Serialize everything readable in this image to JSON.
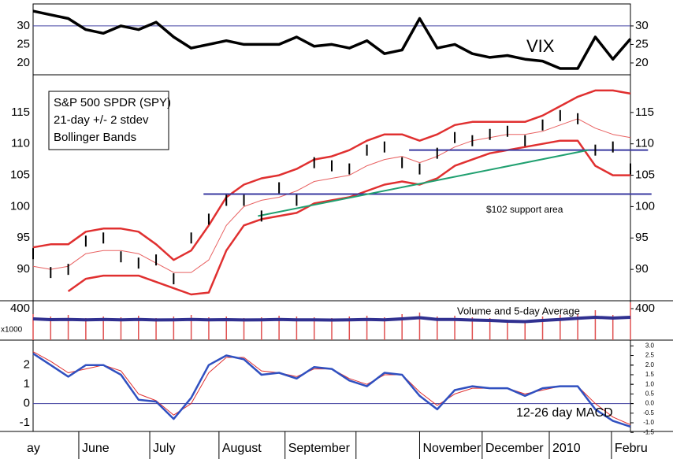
{
  "chart_data": [
    {
      "type": "line",
      "label": "VIX",
      "x": [
        0,
        5,
        10,
        15,
        20,
        25,
        30,
        35,
        40,
        45,
        50,
        55,
        60,
        65,
        70,
        75,
        80,
        85,
        90,
        95,
        100,
        105,
        110,
        115,
        120,
        125,
        130,
        135,
        140,
        145,
        150,
        155,
        160,
        165,
        170
      ],
      "xlim": [
        0,
        170
      ],
      "ylim": [
        16.8,
        35.3
      ],
      "yticks": [
        20,
        25,
        30
      ],
      "hline": 30,
      "series": [
        {
          "color": "#000000",
          "width": 3.5,
          "values": [
            34,
            33,
            32,
            29,
            28,
            30,
            29,
            31,
            27,
            24,
            25,
            26,
            25,
            25,
            25,
            27,
            24.5,
            25,
            24,
            26,
            22.5,
            23.5,
            32,
            24,
            25,
            22.5,
            21.5,
            22,
            21,
            20.5,
            18.5,
            18.5,
            27,
            21,
            26.5
          ]
        }
      ]
    },
    {
      "type": "bollinger",
      "title_lines": [
        "S&P 500 SPDR (SPY)",
        "21-day +/- 2 stdev",
        "Bollinger Bands"
      ],
      "x": [
        0,
        5,
        10,
        15,
        20,
        25,
        30,
        35,
        40,
        45,
        50,
        55,
        60,
        65,
        70,
        75,
        80,
        85,
        90,
        95,
        100,
        105,
        110,
        115,
        120,
        125,
        130,
        135,
        140,
        145,
        150,
        155,
        160,
        165,
        170
      ],
      "xlim": [
        0,
        170
      ],
      "ylim": [
        85,
        121
      ],
      "yticks": [
        90,
        95,
        100,
        105,
        110,
        115
      ],
      "price": {
        "color": "#000000",
        "values": [
          92.5,
          89.5,
          90,
          94.5,
          95,
          92,
          91,
          91.5,
          88.5,
          95,
          98,
          101,
          101,
          98.5,
          103,
          101,
          107,
          106.5,
          106,
          109,
          109.5,
          107,
          106,
          108.5,
          111,
          110.5,
          111.5,
          112,
          110.5,
          113,
          114.5,
          114,
          109,
          109.5,
          106
        ]
      },
      "series": [
        {
          "color": "#e03030",
          "width": 2.5,
          "values": [
            93.5,
            94,
            94,
            96,
            96.5,
            96.5,
            96,
            94,
            91.5,
            93,
            97,
            101.5,
            103.5,
            104.5,
            105,
            106,
            107.5,
            108,
            109,
            110.5,
            111.5,
            111.5,
            110.5,
            111.5,
            113,
            113.5,
            113.5,
            113.5,
            113.5,
            114.5,
            116,
            117.5,
            118.5,
            118.5,
            118
          ]
        },
        {
          "color": "#e86060",
          "width": 1,
          "values": [
            90.5,
            90,
            90.5,
            92.5,
            93,
            93,
            92.5,
            91,
            89.5,
            89.5,
            91.5,
            97,
            100,
            101,
            101.5,
            102.5,
            104,
            104.5,
            105,
            106.5,
            107.5,
            108,
            107,
            108,
            109.5,
            110.5,
            111,
            111.5,
            111.5,
            112,
            113,
            114,
            112.5,
            111.5,
            111
          ]
        },
        {
          "color": "#e03030",
          "width": 2.5,
          "values": [
            null,
            null,
            86.5,
            88.5,
            89,
            89,
            89,
            88,
            87,
            86,
            86.3,
            93,
            97,
            98,
            98.5,
            99,
            100.5,
            101,
            101.5,
            102.5,
            103.5,
            104,
            103.5,
            104.5,
            106.5,
            107.5,
            108.5,
            109,
            109.5,
            110,
            110.5,
            110.5,
            106.5,
            105,
            105
          ]
        }
      ],
      "lines": [
        {
          "color": "#3a3aa0",
          "x": [
            48.5,
            176
          ],
          "values": [
            102,
            102
          ]
        },
        {
          "color": "#3a3aa0",
          "x": [
            107,
            175
          ],
          "values": [
            109,
            109
          ]
        },
        {
          "color": "#20a070",
          "x": [
            64,
            158
          ],
          "values": [
            98.5,
            109
          ]
        }
      ],
      "annotation": "$102 support area"
    },
    {
      "type": "volume",
      "label": "Volume and 5-day Average",
      "unit_label": "x1000",
      "x": [
        0,
        5,
        10,
        15,
        20,
        25,
        30,
        35,
        40,
        45,
        50,
        55,
        60,
        65,
        70,
        75,
        80,
        85,
        90,
        95,
        100,
        105,
        110,
        115,
        120,
        125,
        130,
        135,
        140,
        145,
        150,
        155,
        160,
        165,
        170
      ],
      "xlim": [
        0,
        170
      ],
      "ylim": [
        0,
        500
      ],
      "yticks": [
        400
      ],
      "bar_color": "#e05050",
      "avg_color": "#303090",
      "values": [
        330,
        300,
        320,
        280,
        300,
        290,
        310,
        280,
        300,
        320,
        290,
        300,
        280,
        290,
        310,
        300,
        290,
        280,
        300,
        310,
        290,
        330,
        350,
        300,
        310,
        290,
        280,
        260,
        250,
        300,
        320,
        330,
        380,
        320,
        480
      ],
      "average": [
        270,
        260,
        262,
        258,
        262,
        258,
        262,
        256,
        258,
        262,
        258,
        260,
        256,
        258,
        262,
        258,
        258,
        255,
        258,
        262,
        258,
        270,
        285,
        262,
        262,
        255,
        250,
        240,
        235,
        250,
        262,
        278,
        290,
        280,
        290
      ]
    },
    {
      "type": "line",
      "label": "12-26 day MACD",
      "x": [
        0,
        5,
        10,
        15,
        20,
        25,
        30,
        35,
        40,
        45,
        50,
        55,
        60,
        65,
        70,
        75,
        80,
        85,
        90,
        95,
        100,
        105,
        110,
        115,
        120,
        125,
        130,
        135,
        140,
        145,
        150,
        155,
        160,
        165,
        170
      ],
      "xlim": [
        0,
        170
      ],
      "ylim": [
        -1.45,
        3.3
      ],
      "yticks": [
        -1,
        0,
        1,
        2
      ],
      "hline": 0,
      "y2ticks": [
        {
          "value": 3,
          "label": "3.0"
        },
        2.5,
        {
          "value": 2,
          "label": "2.0"
        },
        1.5,
        {
          "value": 1,
          "label": "1.0"
        },
        0.5,
        {
          "value": 0,
          "label": "0.0"
        },
        -0.5,
        {
          "value": -1,
          "label": "-1.0"
        },
        -1.5
      ],
      "series": [
        {
          "color": "#e03030",
          "width": 1,
          "values": [
            2.7,
            2.2,
            1.6,
            1.8,
            2.0,
            1.7,
            0.5,
            0.15,
            -0.6,
            0.0,
            1.6,
            2.4,
            2.4,
            1.7,
            1.6,
            1.4,
            1.8,
            1.8,
            1.3,
            1.0,
            1.5,
            1.5,
            0.6,
            -0.1,
            0.5,
            0.8,
            0.8,
            0.8,
            0.5,
            0.7,
            0.9,
            0.9,
            0.0,
            -0.7,
            -1.1
          ]
        },
        {
          "color": "#3050c0",
          "width": 2.5,
          "values": [
            2.6,
            2.0,
            1.4,
            2.0,
            2.0,
            1.5,
            0.2,
            0.1,
            -0.8,
            0.3,
            2.0,
            2.5,
            2.3,
            1.5,
            1.6,
            1.3,
            1.9,
            1.8,
            1.2,
            0.9,
            1.6,
            1.5,
            0.4,
            -0.3,
            0.7,
            0.9,
            0.8,
            0.8,
            0.4,
            0.8,
            0.9,
            0.9,
            -0.3,
            -0.9,
            -1.2
          ]
        }
      ],
      "xticks": [
        {
          "value": 0,
          "label": "ay"
        },
        {
          "value": 13,
          "label": "June"
        },
        {
          "value": 33.2,
          "label": "July"
        },
        {
          "value": 52.9,
          "label": "August"
        },
        {
          "value": 71.7,
          "label": "September"
        },
        {
          "value": 91.9,
          "label": null
        },
        {
          "value": 110,
          "label": "November"
        },
        {
          "value": 127.8,
          "label": "December"
        },
        {
          "value": 146.9,
          "label": "2010"
        },
        {
          "value": 164.6,
          "label": "Febru"
        }
      ]
    }
  ]
}
